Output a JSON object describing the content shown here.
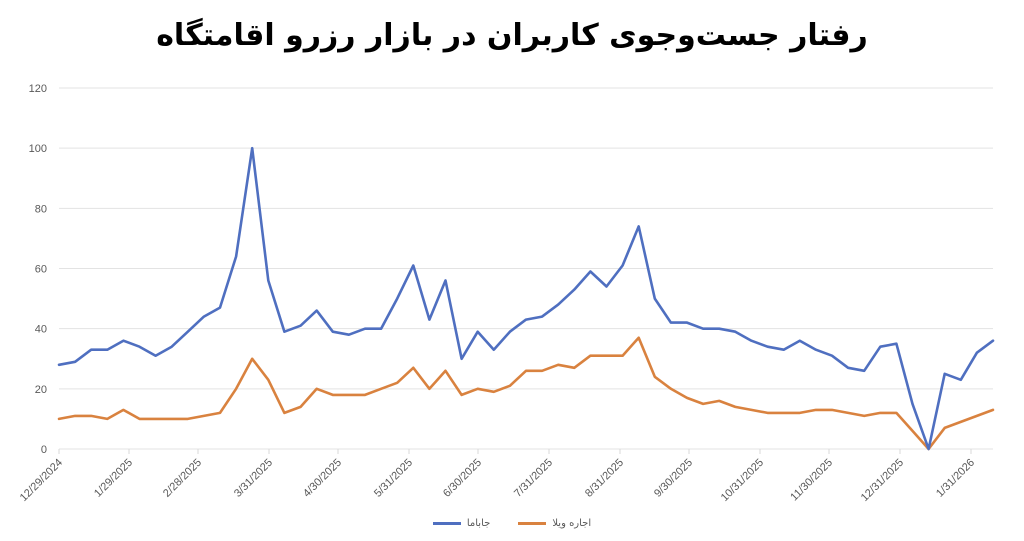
{
  "chart_data": {
    "type": "line",
    "title": "رفتار جست‌وجوی کاربران در بازار رزرو اقامتگاه",
    "xlabel": "",
    "ylabel": "",
    "ylim": [
      0,
      120
    ],
    "yticks": [
      0,
      20,
      40,
      60,
      80,
      100,
      120
    ],
    "xtick_labels": [
      "12/29/2024",
      "1/29/2025",
      "2/28/2025",
      "3/31/2025",
      "4/30/2025",
      "5/31/2025",
      "6/30/2025",
      "7/31/2025",
      "8/31/2025",
      "9/30/2025",
      "10/31/2025",
      "11/30/2025",
      "12/31/2025",
      "1/31/2026"
    ],
    "grid": "horizontal",
    "legend_position": "bottom",
    "series": [
      {
        "name": "جاباما",
        "color": "#4F6FC0",
        "values": [
          28,
          29,
          33,
          33,
          36,
          34,
          31,
          34,
          39,
          44,
          47,
          64,
          100,
          56,
          39,
          41,
          46,
          39,
          38,
          40,
          40,
          50,
          61,
          43,
          56,
          30,
          39,
          33,
          39,
          43,
          44,
          48,
          53,
          59,
          54,
          61,
          74,
          50,
          42,
          42,
          40,
          40,
          39,
          36,
          34,
          33,
          36,
          33,
          31,
          27,
          26,
          34,
          35,
          15,
          0,
          25,
          23,
          32,
          36
        ]
      },
      {
        "name": "اجاره ویلا",
        "color": "#D9823F",
        "values": [
          10,
          11,
          11,
          10,
          13,
          10,
          10,
          10,
          10,
          11,
          12,
          20,
          30,
          23,
          12,
          14,
          20,
          18,
          18,
          18,
          20,
          22,
          27,
          20,
          26,
          18,
          20,
          19,
          21,
          26,
          26,
          28,
          27,
          31,
          31,
          31,
          37,
          24,
          20,
          17,
          15,
          16,
          14,
          13,
          12,
          12,
          12,
          13,
          13,
          12,
          11,
          12,
          12,
          6,
          0,
          7,
          9,
          11,
          13
        ]
      }
    ]
  },
  "legend": {
    "items": [
      {
        "label": "جاباما",
        "color": "#4F6FC0"
      },
      {
        "label": "اجاره ویلا",
        "color": "#D9823F"
      }
    ]
  }
}
